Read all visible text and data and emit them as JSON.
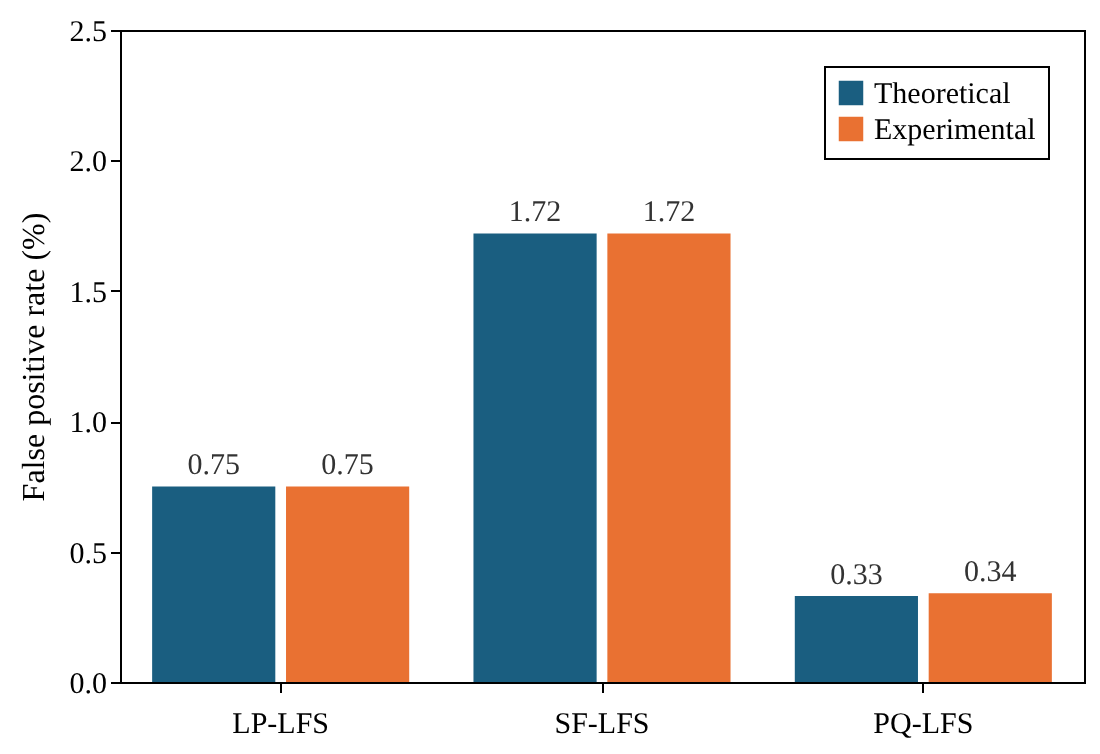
{
  "chart_data": {
    "type": "bar",
    "ylabel": "False positive rate (%)",
    "categories": [
      "LP-LFS",
      "SF-LFS",
      "PQ-LFS"
    ],
    "series": [
      {
        "name": "Theoretical",
        "color": "#1a5e80",
        "values": [
          0.75,
          1.72,
          0.33
        ]
      },
      {
        "name": "Experimental",
        "color": "#e97132",
        "values": [
          0.75,
          1.72,
          0.34
        ]
      }
    ],
    "ylim": [
      0,
      2.5
    ],
    "yticks": [
      {
        "value": 0,
        "label": "0.0"
      },
      {
        "value": 0.5,
        "label": "0.5"
      },
      {
        "value": 1,
        "label": "1.0"
      },
      {
        "value": 1.5,
        "label": "1.5"
      },
      {
        "value": 2,
        "label": "2.0"
      },
      {
        "value": 2.5,
        "label": "2.5"
      }
    ],
    "data_labels": true,
    "legend": "top right",
    "grid": false
  }
}
